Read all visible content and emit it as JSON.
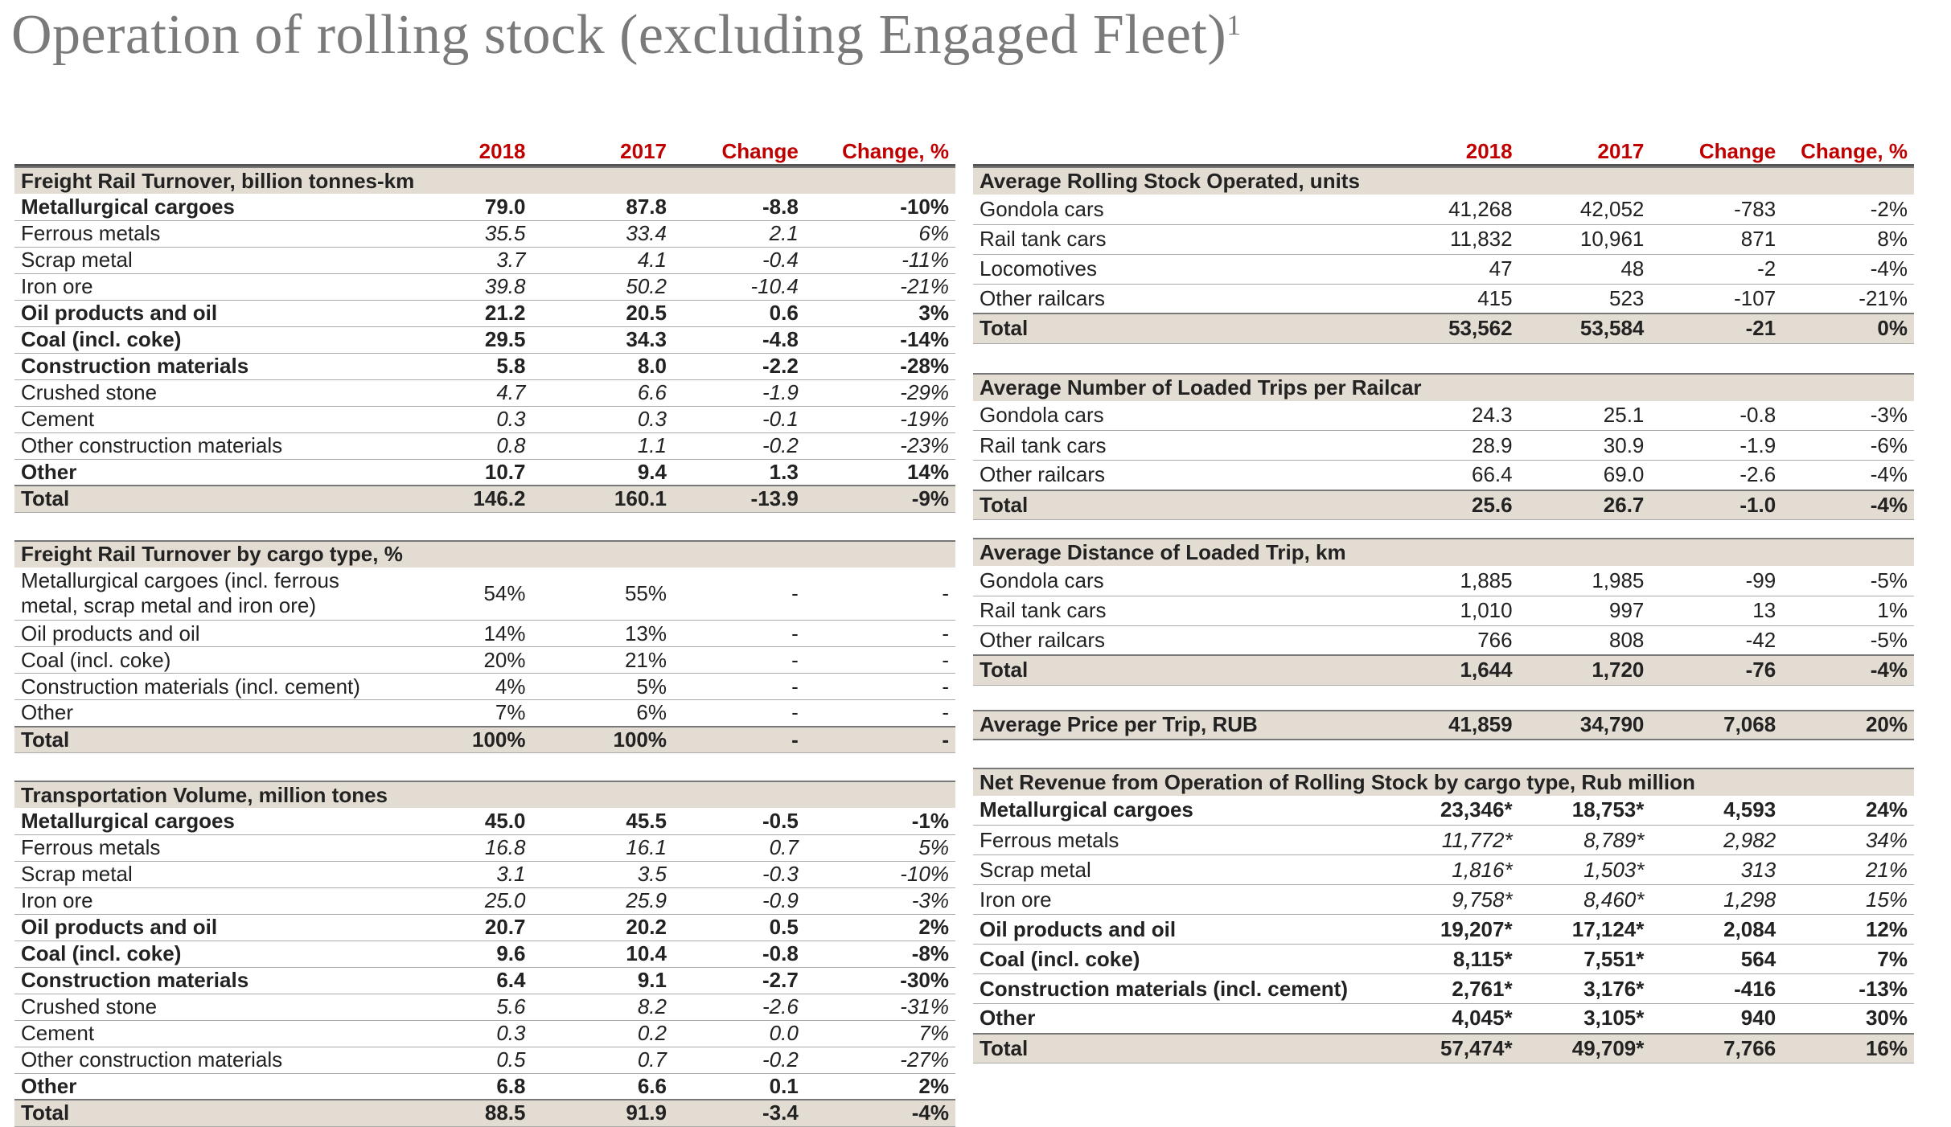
{
  "title": "Operation of rolling stock (excluding Engaged Fleet)",
  "title_sup": "1",
  "columns": [
    "2018",
    "2017",
    "Change",
    "Change, %"
  ],
  "left": {
    "freight_turnover": {
      "heading": "Freight Rail Turnover, billion tonnes-km",
      "rows": [
        {
          "label": "Metallurgical cargoes",
          "v": [
            "79.0",
            "87.8",
            "-8.8",
            "-10%"
          ],
          "style": "bold"
        },
        {
          "label": "Ferrous metals",
          "v": [
            "35.5",
            "33.4",
            "2.1",
            "6%"
          ],
          "style": "sub"
        },
        {
          "label": "Scrap metal",
          "v": [
            "3.7",
            "4.1",
            "-0.4",
            "-11%"
          ],
          "style": "sub"
        },
        {
          "label": "Iron ore",
          "v": [
            "39.8",
            "50.2",
            "-10.4",
            "-21%"
          ],
          "style": "sub"
        },
        {
          "label": "Oil products and oil",
          "v": [
            "21.2",
            "20.5",
            "0.6",
            "3%"
          ],
          "style": "bold"
        },
        {
          "label": "Coal (incl. coke)",
          "v": [
            "29.5",
            "34.3",
            "-4.8",
            "-14%"
          ],
          "style": "bold"
        },
        {
          "label": "Construction materials",
          "v": [
            "5.8",
            "8.0",
            "-2.2",
            "-28%"
          ],
          "style": "bold"
        },
        {
          "label": "Crushed stone",
          "v": [
            "4.7",
            "6.6",
            "-1.9",
            "-29%"
          ],
          "style": "sub"
        },
        {
          "label": "Cement",
          "v": [
            "0.3",
            "0.3",
            "-0.1",
            "-19%"
          ],
          "style": "sub"
        },
        {
          "label": "Other construction materials",
          "v": [
            "0.8",
            "1.1",
            "-0.2",
            "-23%"
          ],
          "style": "sub"
        },
        {
          "label": "Other",
          "v": [
            "10.7",
            "9.4",
            "1.3",
            "14%"
          ],
          "style": "bold"
        },
        {
          "label": "Total",
          "v": [
            "146.2",
            "160.1",
            "-13.9",
            "-9%"
          ],
          "style": "total"
        }
      ]
    },
    "turnover_by_cargo": {
      "heading": "Freight Rail Turnover by cargo type, %",
      "rows": [
        {
          "label": "Metallurgical cargoes (incl. ferrous metal, scrap metal and iron ore)",
          "v": [
            "54%",
            "55%",
            "-",
            "-"
          ],
          "style": "wrap"
        },
        {
          "label": "Oil products and oil",
          "v": [
            "14%",
            "13%",
            "-",
            "-"
          ],
          "style": "plain"
        },
        {
          "label": "Coal (incl. coke)",
          "v": [
            "20%",
            "21%",
            "-",
            "-"
          ],
          "style": "plain"
        },
        {
          "label": "Construction materials (incl. cement)",
          "v": [
            "4%",
            "5%",
            "-",
            "-"
          ],
          "style": "plain"
        },
        {
          "label": "Other",
          "v": [
            "7%",
            "6%",
            "-",
            "-"
          ],
          "style": "plain"
        },
        {
          "label": "Total",
          "v": [
            "100%",
            "100%",
            "-",
            "-"
          ],
          "style": "total"
        }
      ]
    },
    "transport_volume": {
      "heading": "Transportation Volume, million tones",
      "rows": [
        {
          "label": "Metallurgical cargoes",
          "v": [
            "45.0",
            "45.5",
            "-0.5",
            "-1%"
          ],
          "style": "bold"
        },
        {
          "label": "Ferrous metals",
          "v": [
            "16.8",
            "16.1",
            "0.7",
            "5%"
          ],
          "style": "sub"
        },
        {
          "label": "Scrap metal",
          "v": [
            "3.1",
            "3.5",
            "-0.3",
            "-10%"
          ],
          "style": "sub"
        },
        {
          "label": "Iron ore",
          "v": [
            "25.0",
            "25.9",
            "-0.9",
            "-3%"
          ],
          "style": "sub"
        },
        {
          "label": "Oil products and oil",
          "v": [
            "20.7",
            "20.2",
            "0.5",
            "2%"
          ],
          "style": "bold"
        },
        {
          "label": "Coal (incl. coke)",
          "v": [
            "9.6",
            "10.4",
            "-0.8",
            "-8%"
          ],
          "style": "bold"
        },
        {
          "label": "Construction materials",
          "v": [
            "6.4",
            "9.1",
            "-2.7",
            "-30%"
          ],
          "style": "bold"
        },
        {
          "label": "Crushed stone",
          "v": [
            "5.6",
            "8.2",
            "-2.6",
            "-31%"
          ],
          "style": "sub"
        },
        {
          "label": "Cement",
          "v": [
            "0.3",
            "0.2",
            "0.0",
            "7%"
          ],
          "style": "sub"
        },
        {
          "label": "Other construction materials",
          "v": [
            "0.5",
            "0.7",
            "-0.2",
            "-27%"
          ],
          "style": "sub"
        },
        {
          "label": "Other",
          "v": [
            "6.8",
            "6.6",
            "0.1",
            "2%"
          ],
          "style": "bold"
        },
        {
          "label": "Total",
          "v": [
            "88.5",
            "91.9",
            "-3.4",
            "-4%"
          ],
          "style": "total"
        }
      ]
    }
  },
  "right": {
    "rolling_stock": {
      "heading": "Average Rolling Stock Operated, units",
      "rows": [
        {
          "label": "Gondola cars",
          "v": [
            "41,268",
            "42,052",
            "-783",
            "-2%"
          ],
          "style": "plain"
        },
        {
          "label": "Rail tank cars",
          "v": [
            "11,832",
            "10,961",
            "871",
            "8%"
          ],
          "style": "plain"
        },
        {
          "label": "Locomotives",
          "v": [
            "47",
            "48",
            "-2",
            "-4%"
          ],
          "style": "plain"
        },
        {
          "label": "Other railcars",
          "v": [
            "415",
            "523",
            "-107",
            "-21%"
          ],
          "style": "plain"
        },
        {
          "label": "Total",
          "v": [
            "53,562",
            "53,584",
            "-21",
            "0%"
          ],
          "style": "total"
        }
      ]
    },
    "loaded_trips": {
      "heading": "Average Number of Loaded Trips per Railcar",
      "rows": [
        {
          "label": "Gondola cars",
          "v": [
            "24.3",
            "25.1",
            "-0.8",
            "-3%"
          ],
          "style": "plain"
        },
        {
          "label": "Rail tank cars",
          "v": [
            "28.9",
            "30.9",
            "-1.9",
            "-6%"
          ],
          "style": "plain"
        },
        {
          "label": "Other railcars",
          "v": [
            "66.4",
            "69.0",
            "-2.6",
            "-4%"
          ],
          "style": "plain"
        },
        {
          "label": "Total",
          "v": [
            "25.6",
            "26.7",
            "-1.0",
            "-4%"
          ],
          "style": "total"
        }
      ]
    },
    "trip_distance": {
      "heading": "Average Distance of Loaded Trip, km",
      "rows": [
        {
          "label": "Gondola cars",
          "v": [
            "1,885",
            "1,985",
            "-99",
            "-5%"
          ],
          "style": "plain"
        },
        {
          "label": "Rail tank cars",
          "v": [
            "1,010",
            "997",
            "13",
            "1%"
          ],
          "style": "plain"
        },
        {
          "label": "Other railcars",
          "v": [
            "766",
            "808",
            "-42",
            "-5%"
          ],
          "style": "plain"
        },
        {
          "label": "Total",
          "v": [
            "1,644",
            "1,720",
            "-76",
            "-4%"
          ],
          "style": "total"
        }
      ]
    },
    "price_per_trip": {
      "label": "Average Price per Trip, RUB",
      "v": [
        "41,859",
        "34,790",
        "7,068",
        "20%"
      ]
    },
    "net_revenue": {
      "heading": "Net Revenue from Operation of Rolling Stock by cargo type, Rub million",
      "rows": [
        {
          "label": "Metallurgical cargoes",
          "v": [
            "23,346*",
            "18,753*",
            "4,593",
            "24%"
          ],
          "style": "bold"
        },
        {
          "label": "Ferrous metals",
          "v": [
            "11,772*",
            "8,789*",
            "2,982",
            "34%"
          ],
          "style": "sub"
        },
        {
          "label": "Scrap metal",
          "v": [
            "1,816*",
            "1,503*",
            "313",
            "21%"
          ],
          "style": "sub"
        },
        {
          "label": "Iron ore",
          "v": [
            "9,758*",
            "8,460*",
            "1,298",
            "15%"
          ],
          "style": "sub"
        },
        {
          "label": "Oil products and oil",
          "v": [
            "19,207*",
            "17,124*",
            "2,084",
            "12%"
          ],
          "style": "bold"
        },
        {
          "label": "Coal (incl. coke)",
          "v": [
            "8,115*",
            "7,551*",
            "564",
            "7%"
          ],
          "style": "bold"
        },
        {
          "label": "Construction materials (incl. cement)",
          "v": [
            "2,761*",
            "3,176*",
            "-416",
            "-13%"
          ],
          "style": "bold"
        },
        {
          "label": "Other",
          "v": [
            "4,045*",
            "3,105*",
            "940",
            "30%"
          ],
          "style": "bold"
        },
        {
          "label": "Total",
          "v": [
            "57,474*",
            "49,709*",
            "7,766",
            "16%"
          ],
          "style": "total"
        }
      ]
    }
  }
}
